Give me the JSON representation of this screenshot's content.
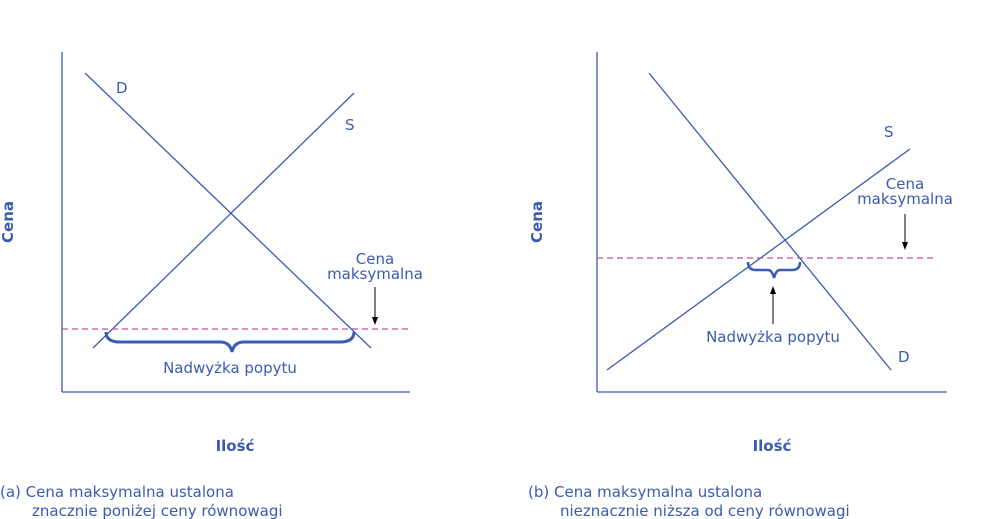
{
  "colors": {
    "line": "#3a5bb0",
    "text": "#3a5bb0",
    "ceiling": "#c0509a",
    "arrow": "#000000"
  },
  "panel_a": {
    "y_axis_label": "Cena",
    "x_axis_label": "Ilość",
    "demand_label": "D",
    "supply_label": "S",
    "ceiling_label_line1": "Cena",
    "ceiling_label_line2": "maksymalna",
    "shortage_label": "Nadwyżka popytu",
    "caption_line1": "(a) Cena maksymalna ustalona",
    "caption_line2": "znacznie poniżej ceny równowagi"
  },
  "panel_b": {
    "y_axis_label": "Cena",
    "x_axis_label": "Ilość",
    "demand_label": "D",
    "supply_label": "S",
    "ceiling_label_line1": "Cena",
    "ceiling_label_line2": "maksymalna",
    "shortage_label": "Nadwyżka popytu",
    "caption_line1": "(b) Cena maksymalna ustalona",
    "caption_line2": "nieznacznie niższa od ceny równowagi"
  }
}
